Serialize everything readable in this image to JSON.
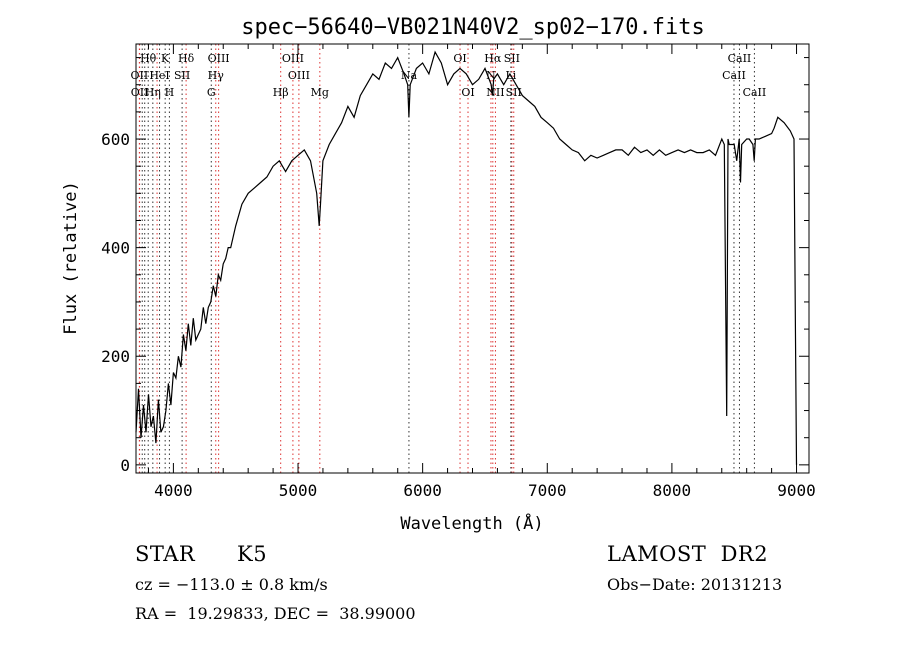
{
  "chart_data": {
    "type": "line",
    "title": "spec−56640−VB021N40V2_sp02−170.fits",
    "xlabel": "Wavelength (Å)",
    "ylabel": "Flux (relative)",
    "xlim": [
      3700,
      9100
    ],
    "ylim": [
      -15,
      775
    ],
    "x_ticks": [
      4000,
      5000,
      6000,
      7000,
      8000,
      9000
    ],
    "y_ticks": [
      0,
      200,
      400,
      600
    ],
    "grid": false,
    "series": [
      {
        "values_description": "spectrum flux",
        "x": [
          3700,
          3720,
          3740,
          3760,
          3780,
          3800,
          3820,
          3840,
          3860,
          3880,
          3900,
          3920,
          3940,
          3960,
          3980,
          4000,
          4020,
          4040,
          4060,
          4080,
          4100,
          4120,
          4140,
          4160,
          4180,
          4200,
          4220,
          4240,
          4260,
          4280,
          4300,
          4320,
          4340,
          4360,
          4380,
          4400,
          4420,
          4440,
          4460,
          4480,
          4500,
          4550,
          4600,
          4650,
          4700,
          4750,
          4800,
          4850,
          4900,
          4950,
          5000,
          5050,
          5100,
          5150,
          5170,
          5180,
          5200,
          5250,
          5300,
          5350,
          5400,
          5450,
          5500,
          5550,
          5600,
          5650,
          5700,
          5750,
          5800,
          5850,
          5880,
          5890,
          5900,
          5950,
          6000,
          6050,
          6100,
          6150,
          6200,
          6250,
          6300,
          6350,
          6400,
          6450,
          6500,
          6550,
          6560,
          6570,
          6600,
          6650,
          6700,
          6750,
          6800,
          6850,
          6900,
          6950,
          7000,
          7050,
          7100,
          7150,
          7200,
          7250,
          7300,
          7350,
          7400,
          7450,
          7500,
          7550,
          7600,
          7650,
          7700,
          7750,
          7800,
          7850,
          7900,
          7950,
          8000,
          8050,
          8100,
          8150,
          8200,
          8250,
          8300,
          8350,
          8400,
          8420,
          8440,
          8450,
          8460,
          8500,
          8520,
          8540,
          8550,
          8560,
          8600,
          8620,
          8650,
          8660,
          8670,
          8700,
          8750,
          8800,
          8820,
          8850,
          8900,
          8950,
          8980,
          8990,
          9000
        ],
        "y": [
          60,
          140,
          50,
          110,
          60,
          130,
          70,
          90,
          40,
          120,
          60,
          70,
          100,
          150,
          110,
          170,
          160,
          200,
          180,
          240,
          210,
          260,
          220,
          270,
          230,
          240,
          250,
          290,
          260,
          290,
          300,
          330,
          310,
          350,
          340,
          370,
          380,
          400,
          400,
          420,
          440,
          480,
          500,
          510,
          520,
          530,
          550,
          560,
          540,
          560,
          570,
          580,
          560,
          500,
          440,
          480,
          560,
          590,
          610,
          630,
          660,
          640,
          680,
          700,
          720,
          710,
          740,
          730,
          750,
          720,
          700,
          640,
          700,
          730,
          740,
          720,
          760,
          740,
          700,
          720,
          730,
          720,
          700,
          710,
          730,
          700,
          680,
          710,
          720,
          700,
          720,
          700,
          680,
          670,
          660,
          640,
          630,
          620,
          600,
          590,
          580,
          575,
          560,
          570,
          565,
          570,
          575,
          580,
          580,
          570,
          585,
          575,
          580,
          570,
          580,
          570,
          575,
          580,
          575,
          580,
          575,
          575,
          580,
          570,
          600,
          590,
          90,
          600,
          590,
          590,
          560,
          600,
          520,
          590,
          600,
          600,
          590,
          560,
          600,
          600,
          605,
          610,
          620,
          640,
          630,
          615,
          600,
          280,
          0
        ]
      }
    ],
    "line_labels": [
      {
        "name": "Hθ",
        "x": 3798,
        "row": 0
      },
      {
        "name": "K",
        "x": 3934,
        "row": 0
      },
      {
        "name": "Hδ",
        "x": 4102,
        "row": 0
      },
      {
        "name": "OIII",
        "x": 4363,
        "row": 0
      },
      {
        "name": "OIII",
        "x": 4959,
        "row": 0
      },
      {
        "name": "OI",
        "x": 6300,
        "row": 0
      },
      {
        "name": "Hα",
        "x": 6563,
        "row": 0
      },
      {
        "name": "SII",
        "x": 6716,
        "row": 0
      },
      {
        "name": "CaII",
        "x": 8542,
        "row": 0
      },
      {
        "name": "OII",
        "x": 3727,
        "row": 1
      },
      {
        "name": "HeI",
        "x": 3889,
        "row": 1
      },
      {
        "name": "SII",
        "x": 4070,
        "row": 1
      },
      {
        "name": "Hγ",
        "x": 4340,
        "row": 1
      },
      {
        "name": "OIII",
        "x": 5007,
        "row": 1
      },
      {
        "name": "Na",
        "x": 5890,
        "row": 1
      },
      {
        "name": "N",
        "x": 6548,
        "row": 1
      },
      {
        "name": "Li",
        "x": 6708,
        "row": 1
      },
      {
        "name": "CaII",
        "x": 8498,
        "row": 1
      },
      {
        "name": "OII",
        "x": 3729,
        "row": 2
      },
      {
        "name": "Hη",
        "x": 3835,
        "row": 2
      },
      {
        "name": "H",
        "x": 3968,
        "row": 2
      },
      {
        "name": "G",
        "x": 4304,
        "row": 2
      },
      {
        "name": "Hβ",
        "x": 4861,
        "row": 2
      },
      {
        "name": "Mg",
        "x": 5175,
        "row": 2
      },
      {
        "name": "OI",
        "x": 6364,
        "row": 2
      },
      {
        "name": "NII",
        "x": 6584,
        "row": 2
      },
      {
        "name": "SII",
        "x": 6731,
        "row": 2
      },
      {
        "name": "CaII",
        "x": 8662,
        "row": 2
      }
    ],
    "line_markers_red": [
      3727,
      3729,
      3869,
      4102,
      4340,
      4363,
      4861,
      4959,
      5007,
      5175,
      6300,
      6364,
      6548,
      6563,
      6584,
      6716,
      6731
    ],
    "line_markers_black": [
      3750,
      3770,
      3798,
      3835,
      3889,
      3934,
      3968,
      4070,
      4304,
      5890,
      6708,
      8498,
      8542,
      8662
    ]
  },
  "info": {
    "class_label": "STAR",
    "subclass": "K5",
    "survey": "LAMOST  DR2",
    "redshift": "cz = −113.0 ± 0.8 km/s",
    "obsdate": "Obs−Date: 20131213",
    "coords": "RA =  19.29833, DEC =  38.99000"
  }
}
